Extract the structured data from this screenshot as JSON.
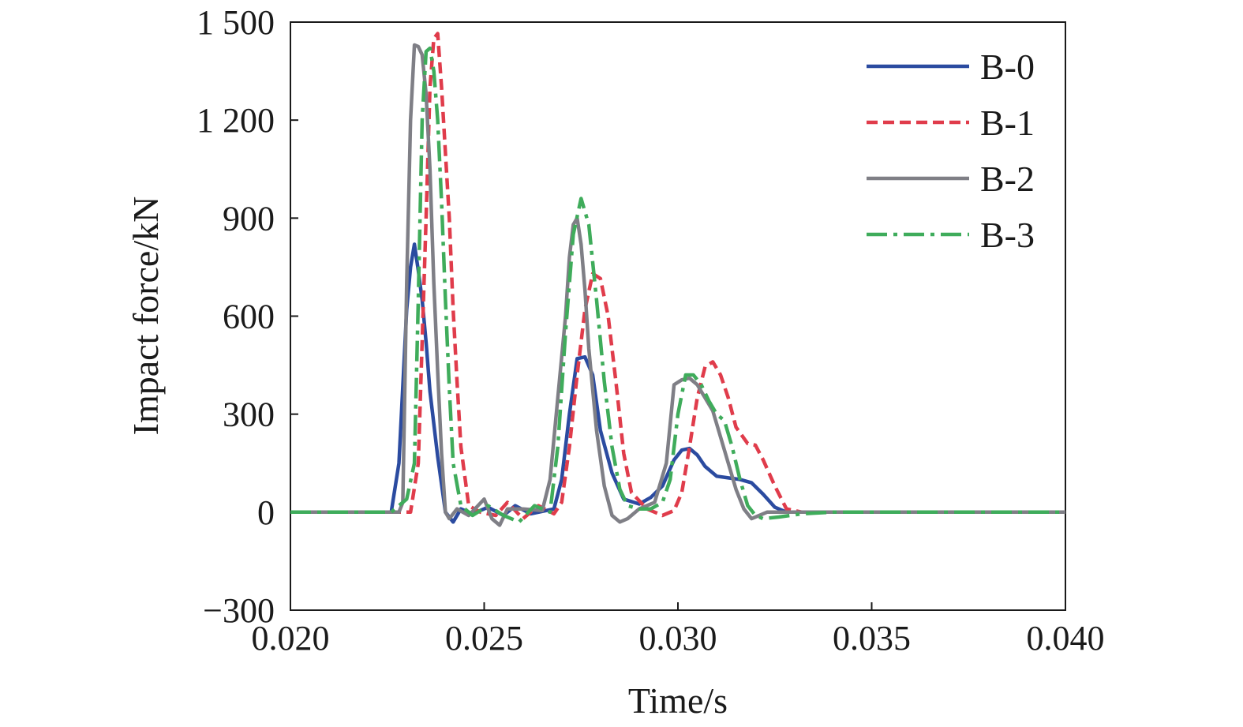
{
  "chart_data": {
    "type": "line",
    "xlabel": "Time/s",
    "ylabel": "Impact force/kN",
    "xlim": [
      0.02,
      0.04
    ],
    "ylim": [
      -300,
      1500
    ],
    "xticks": [
      0.02,
      0.025,
      0.03,
      0.035,
      0.04
    ],
    "xtick_labels": [
      "0.020",
      "0.025",
      "0.030",
      "0.035",
      "0.040"
    ],
    "yticks": [
      -300,
      0,
      300,
      600,
      900,
      1200,
      1500
    ],
    "ytick_labels": [
      "−300",
      "0",
      "300",
      "600",
      "900",
      "1 200",
      "1 500"
    ],
    "grid": false,
    "legend_position": "top-right",
    "series": [
      {
        "name": "B-0",
        "color": "#2b4ba0",
        "dash": "solid",
        "x": [
          0.02,
          0.022,
          0.0226,
          0.0228,
          0.023,
          0.0231,
          0.0232,
          0.0233,
          0.0234,
          0.0235,
          0.0236,
          0.0238,
          0.024,
          0.0242,
          0.0244,
          0.0247,
          0.0251,
          0.0255,
          0.0258,
          0.0262,
          0.0266,
          0.0268,
          0.027,
          0.0272,
          0.0274,
          0.0276,
          0.0278,
          0.028,
          0.0283,
          0.0286,
          0.029,
          0.0293,
          0.0296,
          0.0299,
          0.0301,
          0.0303,
          0.0305,
          0.0307,
          0.031,
          0.0313,
          0.0316,
          0.0319,
          0.0322,
          0.0325,
          0.0328,
          0.0332,
          0.034,
          0.036,
          0.038,
          0.04
        ],
        "y": [
          0,
          0,
          0,
          150,
          620,
          750,
          820,
          740,
          650,
          520,
          370,
          170,
          0,
          -30,
          10,
          -5,
          15,
          -10,
          20,
          -5,
          5,
          10,
          100,
          300,
          470,
          475,
          420,
          250,
          120,
          40,
          25,
          45,
          80,
          160,
          190,
          195,
          175,
          140,
          110,
          105,
          100,
          90,
          55,
          15,
          0,
          0,
          0,
          0,
          0,
          0
        ]
      },
      {
        "name": "B-1",
        "color": "#e03c4b",
        "dash": "14 7",
        "x": [
          0.02,
          0.0225,
          0.0231,
          0.0233,
          0.0235,
          0.0236,
          0.0237,
          0.0238,
          0.0239,
          0.024,
          0.0241,
          0.0242,
          0.0243,
          0.0244,
          0.0246,
          0.0249,
          0.0253,
          0.0256,
          0.026,
          0.0264,
          0.0268,
          0.027,
          0.0272,
          0.0274,
          0.0276,
          0.0278,
          0.028,
          0.0282,
          0.0284,
          0.0286,
          0.0288,
          0.0292,
          0.0296,
          0.0299,
          0.0301,
          0.0303,
          0.0305,
          0.0307,
          0.0309,
          0.0311,
          0.0313,
          0.0315,
          0.0318,
          0.032,
          0.0322,
          0.0325,
          0.0328,
          0.0332,
          0.034,
          0.036,
          0.038,
          0.04
        ],
        "y": [
          0,
          0,
          0,
          150,
          900,
          1300,
          1450,
          1465,
          1300,
          1100,
          900,
          620,
          400,
          200,
          20,
          0,
          -10,
          30,
          -20,
          20,
          -5,
          30,
          200,
          420,
          620,
          730,
          715,
          600,
          400,
          180,
          60,
          10,
          -10,
          5,
          60,
          200,
          350,
          445,
          460,
          420,
          350,
          260,
          210,
          205,
          160,
          80,
          10,
          0,
          0,
          0,
          0,
          0
        ]
      },
      {
        "name": "B-2",
        "color": "#7f7f86",
        "dash": "solid",
        "x": [
          0.02,
          0.0225,
          0.0228,
          0.0229,
          0.023,
          0.0231,
          0.0232,
          0.0233,
          0.0234,
          0.0235,
          0.0236,
          0.0237,
          0.0238,
          0.0239,
          0.024,
          0.0241,
          0.0243,
          0.0246,
          0.025,
          0.0252,
          0.0254,
          0.0256,
          0.026,
          0.0265,
          0.0267,
          0.0269,
          0.0271,
          0.0272,
          0.0273,
          0.0274,
          0.0275,
          0.0276,
          0.0277,
          0.0279,
          0.0281,
          0.0283,
          0.0285,
          0.0287,
          0.029,
          0.0294,
          0.0297,
          0.0299,
          0.0301,
          0.0303,
          0.0305,
          0.0307,
          0.0309,
          0.0311,
          0.0313,
          0.0315,
          0.0317,
          0.0319,
          0.0321,
          0.0323,
          0.0326,
          0.0332,
          0.034,
          0.036,
          0.038,
          0.04
        ],
        "y": [
          0,
          0,
          0,
          30,
          700,
          1200,
          1430,
          1425,
          1400,
          1280,
          1050,
          700,
          430,
          180,
          0,
          -20,
          10,
          -10,
          40,
          -20,
          -40,
          10,
          10,
          5,
          100,
          350,
          600,
          780,
          880,
          900,
          820,
          680,
          500,
          250,
          80,
          -10,
          -30,
          -20,
          10,
          30,
          150,
          390,
          405,
          410,
          390,
          350,
          310,
          230,
          150,
          70,
          10,
          -20,
          -10,
          0,
          0,
          0,
          0,
          0,
          0,
          0
        ]
      },
      {
        "name": "B-3",
        "color": "#3fac5b",
        "dash": "26 8 5 8",
        "x": [
          0.02,
          0.0226,
          0.023,
          0.0232,
          0.0233,
          0.0234,
          0.0235,
          0.0236,
          0.0237,
          0.0238,
          0.0239,
          0.024,
          0.0241,
          0.0242,
          0.0244,
          0.0247,
          0.0251,
          0.0255,
          0.0259,
          0.0263,
          0.0267,
          0.0269,
          0.0271,
          0.0273,
          0.0275,
          0.0277,
          0.0279,
          0.0281,
          0.0283,
          0.0285,
          0.0287,
          0.029,
          0.0293,
          0.0296,
          0.0298,
          0.03,
          0.0302,
          0.0304,
          0.0306,
          0.0308,
          0.031,
          0.0312,
          0.0314,
          0.0316,
          0.0318,
          0.032,
          0.0322,
          0.0326,
          0.0332,
          0.034,
          0.036,
          0.038,
          0.04
        ],
        "y": [
          0,
          0,
          40,
          150,
          650,
          1200,
          1410,
          1420,
          1350,
          1200,
          950,
          650,
          380,
          150,
          20,
          -10,
          20,
          -10,
          -30,
          20,
          0,
          200,
          550,
          850,
          960,
          880,
          650,
          400,
          200,
          70,
          20,
          10,
          10,
          30,
          100,
          300,
          420,
          420,
          390,
          340,
          300,
          280,
          200,
          100,
          20,
          -10,
          -20,
          -15,
          -5,
          0,
          0,
          0,
          0
        ]
      }
    ]
  }
}
